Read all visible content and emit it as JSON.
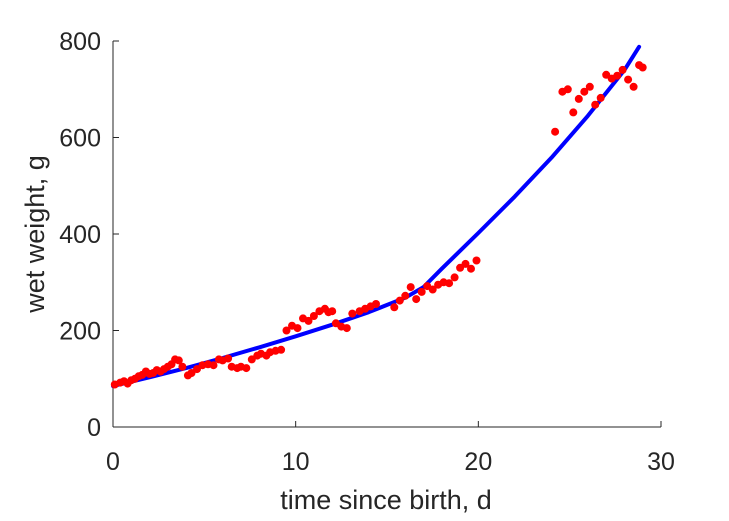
{
  "chart_data": {
    "type": "scatter",
    "title": "",
    "xlabel": "time since birth, d",
    "ylabel": "wet weight, g",
    "xlim": [
      0,
      30
    ],
    "ylim": [
      0,
      800
    ],
    "x_ticks": [
      "0",
      "10",
      "20",
      "30"
    ],
    "y_ticks": [
      "0",
      "200",
      "400",
      "600",
      "800"
    ],
    "grid": false,
    "legend": "none",
    "series": [
      {
        "kind": "points",
        "color": "#ff0000",
        "points": [
          [
            0.1,
            88
          ],
          [
            0.4,
            92
          ],
          [
            0.6,
            95
          ],
          [
            0.8,
            90
          ],
          [
            1.0,
            97
          ],
          [
            1.2,
            100
          ],
          [
            1.4,
            105
          ],
          [
            1.6,
            108
          ],
          [
            1.8,
            115
          ],
          [
            2.0,
            110
          ],
          [
            2.2,
            112
          ],
          [
            2.4,
            118
          ],
          [
            2.6,
            115
          ],
          [
            2.8,
            120
          ],
          [
            3.0,
            125
          ],
          [
            3.2,
            130
          ],
          [
            3.4,
            140
          ],
          [
            3.6,
            138
          ],
          [
            3.8,
            125
          ],
          [
            4.1,
            107
          ],
          [
            4.3,
            112
          ],
          [
            4.6,
            120
          ],
          [
            4.9,
            128
          ],
          [
            5.2,
            130
          ],
          [
            5.5,
            128
          ],
          [
            5.8,
            140
          ],
          [
            6.0,
            138
          ],
          [
            6.3,
            142
          ],
          [
            6.5,
            125
          ],
          [
            6.8,
            122
          ],
          [
            7.0,
            125
          ],
          [
            7.3,
            122
          ],
          [
            7.6,
            140
          ],
          [
            7.9,
            148
          ],
          [
            8.1,
            152
          ],
          [
            8.4,
            148
          ],
          [
            8.6,
            155
          ],
          [
            8.9,
            158
          ],
          [
            9.2,
            160
          ],
          [
            9.5,
            200
          ],
          [
            9.8,
            210
          ],
          [
            10.1,
            205
          ],
          [
            10.4,
            225
          ],
          [
            10.7,
            220
          ],
          [
            11.0,
            230
          ],
          [
            11.3,
            240
          ],
          [
            11.6,
            245
          ],
          [
            11.8,
            238
          ],
          [
            12.0,
            240
          ],
          [
            12.2,
            215
          ],
          [
            12.5,
            208
          ],
          [
            12.8,
            205
          ],
          [
            13.1,
            235
          ],
          [
            13.5,
            240
          ],
          [
            13.8,
            245
          ],
          [
            14.1,
            250
          ],
          [
            14.4,
            255
          ],
          [
            15.4,
            248
          ],
          [
            15.7,
            262
          ],
          [
            16.0,
            272
          ],
          [
            16.3,
            290
          ],
          [
            16.6,
            265
          ],
          [
            16.9,
            280
          ],
          [
            17.2,
            292
          ],
          [
            17.5,
            285
          ],
          [
            17.8,
            295
          ],
          [
            18.1,
            300
          ],
          [
            18.4,
            298
          ],
          [
            18.7,
            310
          ],
          [
            19.0,
            330
          ],
          [
            19.3,
            338
          ],
          [
            19.6,
            328
          ],
          [
            19.9,
            345
          ],
          [
            24.2,
            612
          ],
          [
            24.6,
            695
          ],
          [
            24.9,
            700
          ],
          [
            25.2,
            652
          ],
          [
            25.5,
            680
          ],
          [
            25.8,
            695
          ],
          [
            26.1,
            705
          ],
          [
            26.4,
            668
          ],
          [
            26.7,
            682
          ],
          [
            27.0,
            730
          ],
          [
            27.3,
            722
          ],
          [
            27.6,
            728
          ],
          [
            27.9,
            740
          ],
          [
            28.2,
            720
          ],
          [
            28.5,
            705
          ],
          [
            28.8,
            750
          ],
          [
            29.0,
            745
          ]
        ]
      },
      {
        "kind": "line",
        "color": "#0000ff",
        "points": [
          [
            0,
            85
          ],
          [
            2,
            103
          ],
          [
            4,
            122
          ],
          [
            6,
            143
          ],
          [
            8,
            165
          ],
          [
            10,
            188
          ],
          [
            12,
            212
          ],
          [
            14,
            238
          ],
          [
            16,
            268
          ],
          [
            17,
            290
          ],
          [
            18,
            328
          ],
          [
            20,
            402
          ],
          [
            22,
            478
          ],
          [
            24,
            558
          ],
          [
            26,
            645
          ],
          [
            28,
            740
          ],
          [
            28.8,
            788
          ]
        ]
      }
    ]
  }
}
